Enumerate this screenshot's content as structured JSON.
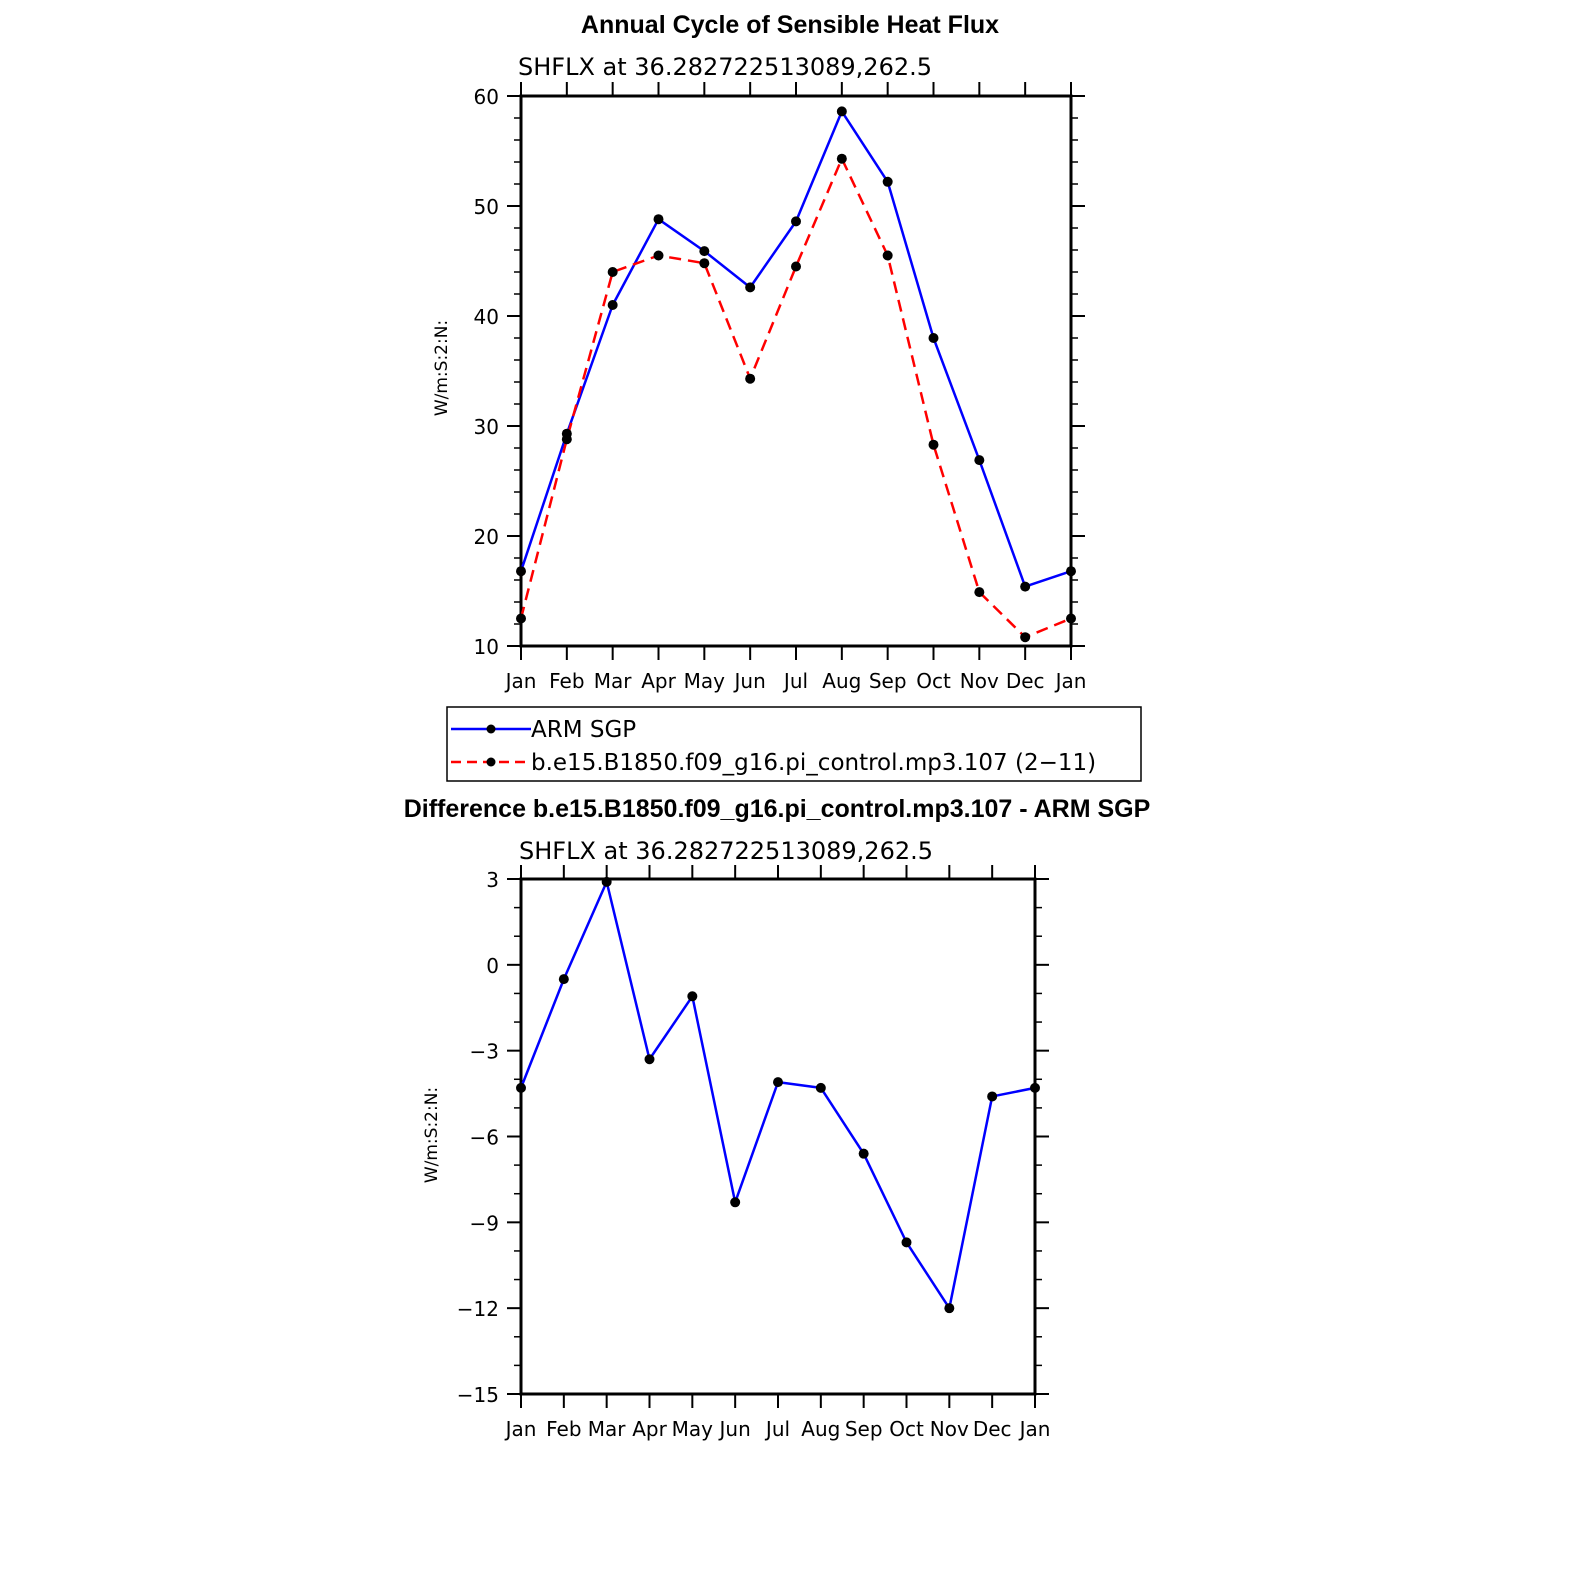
{
  "chart_data": [
    {
      "type": "line",
      "title": "Annual Cycle of Sensible Heat Flux",
      "subtitle": "SHFLX at 36.282722513089,262.5",
      "ylabel": "W/m:S:2:N:",
      "xlabel": "",
      "categories": [
        "Jan",
        "Feb",
        "Mar",
        "Apr",
        "May",
        "Jun",
        "Jul",
        "Aug",
        "Sep",
        "Oct",
        "Nov",
        "Dec",
        "Jan"
      ],
      "ylim": [
        10,
        60
      ],
      "yticks": [
        "10",
        "20",
        "30",
        "40",
        "50",
        "60"
      ],
      "legend": "bottom",
      "series": [
        {
          "name": "ARM SGP",
          "color": "#0000ff",
          "dash": "solid",
          "values": [
            16.8,
            29.3,
            41.0,
            48.8,
            45.9,
            42.6,
            48.6,
            58.6,
            52.2,
            38.0,
            26.9,
            15.4,
            16.8
          ]
        },
        {
          "name": "b.e15.B1850.f09_g16.pi_control.mp3.107 (2−11)",
          "color": "#ff0000",
          "dash": "dashed",
          "values": [
            12.5,
            28.8,
            44.0,
            45.5,
            44.8,
            34.3,
            44.5,
            54.3,
            45.5,
            28.3,
            14.9,
            10.8,
            12.5
          ]
        }
      ]
    },
    {
      "type": "line",
      "title": "Difference b.e15.B1850.f09_g16.pi_control.mp3.107 - ARM SGP",
      "subtitle": "SHFLX at 36.282722513089,262.5",
      "ylabel": "W/m:S:2:N:",
      "xlabel": "",
      "categories": [
        "Jan",
        "Feb",
        "Mar",
        "Apr",
        "May",
        "Jun",
        "Jul",
        "Aug",
        "Sep",
        "Oct",
        "Nov",
        "Dec",
        "Jan"
      ],
      "ylim": [
        -15,
        3
      ],
      "yticks": [
        "−15",
        "−12",
        "−9",
        "−6",
        "−3",
        "0",
        "3"
      ],
      "series": [
        {
          "name": "",
          "color": "#0000ff",
          "dash": "solid",
          "values": [
            -4.3,
            -0.5,
            2.9,
            -3.3,
            -1.1,
            -8.3,
            -4.1,
            -4.3,
            -6.6,
            -9.7,
            -12.0,
            -4.6,
            -4.3
          ]
        }
      ]
    }
  ]
}
